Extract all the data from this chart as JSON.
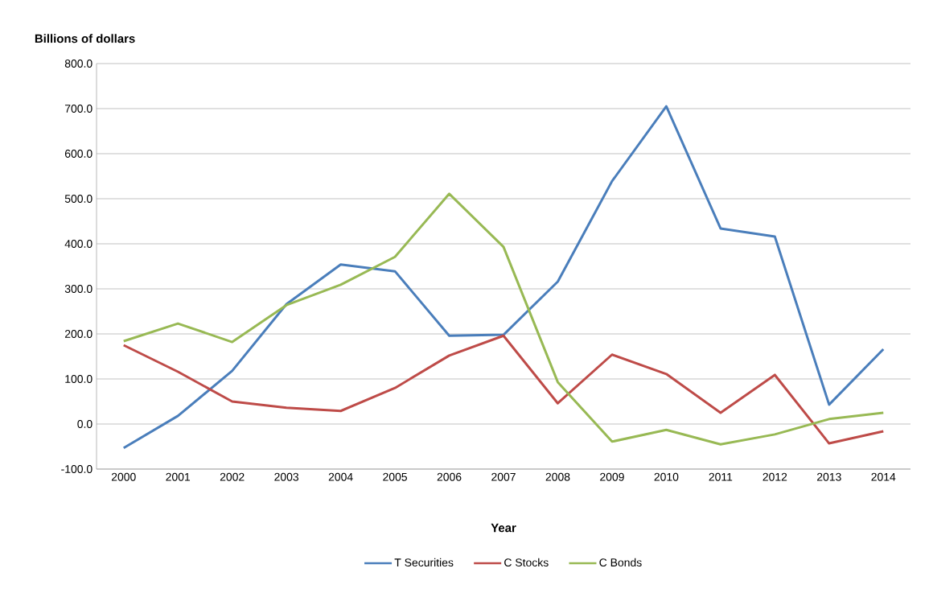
{
  "chart_data": {
    "type": "line",
    "xlabel": "Year",
    "ylabel": "Billions of dollars",
    "categories": [
      "2000",
      "2001",
      "2002",
      "2003",
      "2004",
      "2005",
      "2006",
      "2007",
      "2008",
      "2009",
      "2010",
      "2011",
      "2012",
      "2013",
      "2014"
    ],
    "series": [
      {
        "name": "T Securities",
        "color": "#4a7ebb",
        "values": [
          -53,
          18,
          118,
          266,
          354,
          339,
          196,
          198,
          316,
          539,
          705,
          434,
          416,
          43,
          166
        ]
      },
      {
        "name": "C Stocks",
        "color": "#be4b48",
        "values": [
          175,
          116,
          50,
          36,
          29,
          80,
          152,
          196,
          46,
          154,
          111,
          25,
          109,
          -43,
          -16
        ]
      },
      {
        "name": "C Bonds",
        "color": "#98b954",
        "values": [
          184,
          223,
          182,
          264,
          309,
          371,
          511,
          393,
          93,
          -39,
          -13,
          -45,
          -23,
          11,
          25
        ]
      }
    ],
    "ylim": [
      -100,
      800
    ],
    "yticks": [
      {
        "value": -100,
        "label": "-100.0"
      },
      {
        "value": 0,
        "label": "0.0"
      },
      {
        "value": 100,
        "label": "100.0"
      },
      {
        "value": 200,
        "label": "200.0"
      },
      {
        "value": 300,
        "label": "300.0"
      },
      {
        "value": 400,
        "label": "400.0"
      },
      {
        "value": 500,
        "label": "500.0"
      },
      {
        "value": 600,
        "label": "600.0"
      },
      {
        "value": 700,
        "label": "700.0"
      },
      {
        "value": 800,
        "label": "800.0"
      }
    ],
    "grid": "y",
    "legend": "bottom",
    "line_style": "solid"
  }
}
